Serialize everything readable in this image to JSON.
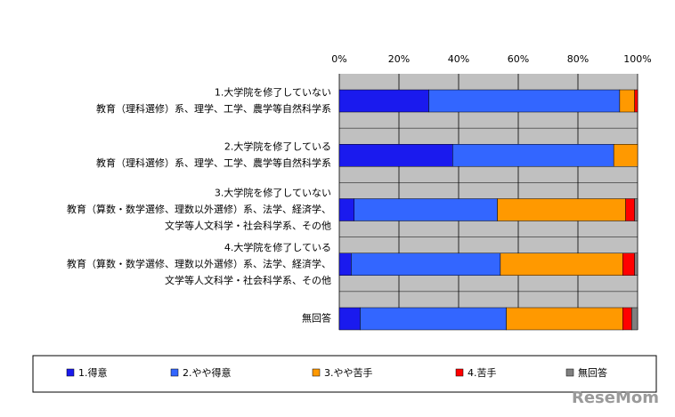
{
  "chart_data": {
    "type": "stacked-barh",
    "categories": [
      [
        "1.大学院を修了していない",
        "教育（理科選修）系、理学、工学、農学等自然科学系"
      ],
      [
        "2.大学院を修了している",
        "教育（理科選修）系、理学、工学、農学等自然科学系"
      ],
      [
        "3.大学院を修了していない",
        "教育（算数・数学選修、理数以外選修）系、法学、経済学、",
        "文学等人文科学・社会科学系、その他"
      ],
      [
        "4.大学院を修了している",
        "教育（算数・数学選修、理数以外選修）系、法学、経済学、",
        "文学等人文科学・社会科学系、その他"
      ],
      [
        "無回答"
      ]
    ],
    "series": [
      {
        "name": "1.得意",
        "color": "#1a1aee",
        "values": [
          30,
          38,
          5,
          4,
          7
        ]
      },
      {
        "name": "2.やや得意",
        "color": "#3366ff",
        "values": [
          64,
          54,
          48,
          50,
          49
        ]
      },
      {
        "name": "3.やや苦手",
        "color": "#ff9900",
        "values": [
          5,
          8,
          43,
          41,
          39
        ]
      },
      {
        "name": "4.苦手",
        "color": "#ff0000",
        "values": [
          1,
          0,
          3,
          4,
          3
        ]
      },
      {
        "name": "無回答",
        "color": "#808080",
        "values": [
          0,
          0,
          1,
          1,
          2
        ]
      }
    ],
    "xlim": [
      0,
      100
    ],
    "xticks": [
      {
        "value": 0,
        "label": "0%"
      },
      {
        "value": 20,
        "label": "20%"
      },
      {
        "value": 40,
        "label": "40%"
      },
      {
        "value": 60,
        "label": "60%"
      },
      {
        "value": 80,
        "label": "80%"
      },
      {
        "value": 100,
        "label": "100%"
      }
    ],
    "grid": true,
    "legend": "bottom",
    "watermark": "ReseMom"
  }
}
